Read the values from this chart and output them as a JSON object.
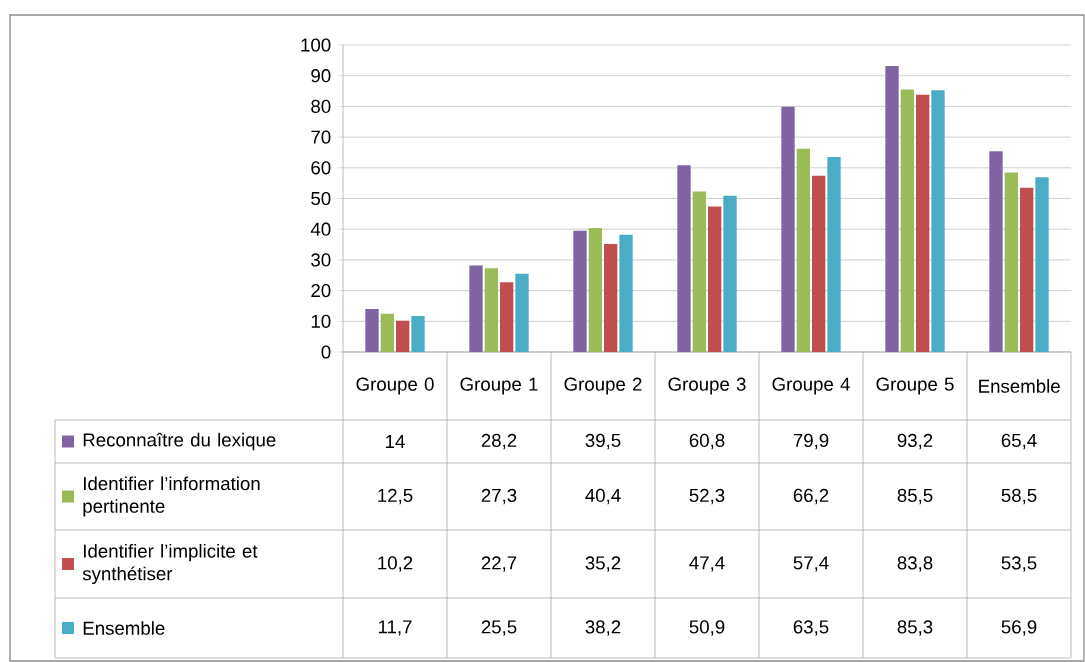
{
  "chart_data": {
    "type": "bar",
    "categories": [
      "Groupe 0",
      "Groupe 1",
      "Groupe 2",
      "Groupe 3",
      "Groupe 4",
      "Groupe 5",
      "Ensemble"
    ],
    "series": [
      {
        "name": "Reconnaître du lexique",
        "color": "#8064a2",
        "values": [
          14,
          28.2,
          39.5,
          60.8,
          79.9,
          93.2,
          65.4
        ],
        "value_labels": [
          "14",
          "28,2",
          "39,5",
          "60,8",
          "79,9",
          "93,2",
          "65,4"
        ]
      },
      {
        "name": "Identifier l’information pertinente",
        "color": "#9bbb59",
        "values": [
          12.5,
          27.3,
          40.4,
          52.3,
          66.2,
          85.5,
          58.5
        ],
        "value_labels": [
          "12,5",
          "27,3",
          "40,4",
          "52,3",
          "66,2",
          "85,5",
          "58,5"
        ]
      },
      {
        "name": "Identifier l’implicite et synthétiser",
        "color": "#c0504d",
        "values": [
          10.2,
          22.7,
          35.2,
          47.4,
          57.4,
          83.8,
          53.5
        ],
        "value_labels": [
          "10,2",
          "22,7",
          "35,2",
          "47,4",
          "57,4",
          "83,8",
          "53,5"
        ]
      },
      {
        "name": "Ensemble",
        "color": "#4bacc6",
        "values": [
          11.7,
          25.5,
          38.2,
          50.9,
          63.5,
          85.3,
          56.9
        ],
        "value_labels": [
          "11,7",
          "25,5",
          "38,2",
          "50,9",
          "63,5",
          "85,3",
          "56,9"
        ]
      }
    ],
    "ylim": [
      0,
      100
    ],
    "yticks": [
      0,
      10,
      20,
      30,
      40,
      50,
      60,
      70,
      80,
      90,
      100
    ],
    "grid": "y",
    "legend": "bottom left"
  }
}
